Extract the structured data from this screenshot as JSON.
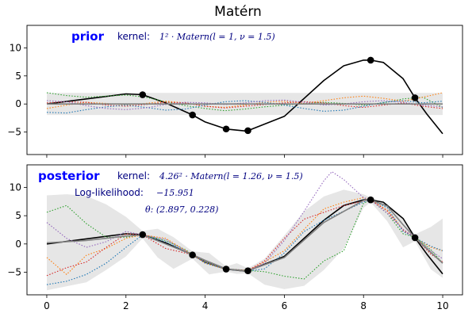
{
  "chart_data": {
    "type": "line",
    "title": "Matérn",
    "xlim": [
      -0.5,
      10.5
    ],
    "xticks": [
      0,
      2,
      4,
      6,
      8,
      10
    ],
    "observations": {
      "x": [
        2.42,
        3.68,
        4.53,
        5.08,
        8.18,
        9.3
      ],
      "y": [
        1.65,
        -1.95,
        -4.45,
        -4.75,
        7.8,
        1.1
      ]
    },
    "panels": [
      {
        "label": "prior",
        "ylim": [
          -9,
          14
        ],
        "yticks": [
          -5,
          0,
          5,
          10
        ],
        "kernel_label": "kernel:",
        "kernel_formula": "1² · Matern(l = 1, ν = 1.5)",
        "band": {
          "x": [
            0,
            10
          ],
          "lower": [
            -1.96,
            -1.96
          ],
          "upper": [
            1.96,
            1.96
          ]
        },
        "mean": {
          "x": [
            0,
            10
          ],
          "y": [
            0,
            0
          ]
        },
        "series": [
          {
            "color": "#000000",
            "style": "solid",
            "x": [
              0,
              1,
              2,
              2.42,
              3,
              3.68,
              4,
              4.53,
              5,
              5.08,
              6,
              7,
              7.5,
              8,
              8.18,
              8.5,
              9,
              9.3,
              9.6,
              10
            ],
            "y": [
              0,
              0.9,
              1.8,
              1.65,
              0.2,
              -1.95,
              -3.2,
              -4.45,
              -4.8,
              -4.75,
              -2.2,
              4.2,
              6.8,
              7.8,
              7.8,
              7.4,
              4.5,
              1.1,
              -1.8,
              -5.3
            ]
          },
          {
            "color": "#2ca02c",
            "style": "dotted",
            "x": [
              0,
              0.5,
              1,
              1.5,
              2,
              2.5,
              3,
              3.5,
              4,
              4.5,
              5,
              5.5,
              6,
              6.5,
              7,
              7.5,
              8,
              8.5,
              9,
              9.5,
              10
            ],
            "y": [
              2.0,
              1.5,
              1.2,
              1.4,
              1.6,
              1.2,
              0.4,
              -0.3,
              -0.8,
              -1.2,
              -0.9,
              -0.5,
              -0.2,
              0.1,
              0.3,
              0.1,
              -0.2,
              0.2,
              0.9,
              1.2,
              -0.6
            ]
          },
          {
            "color": "#ff7f0e",
            "style": "dotted",
            "x": [
              0,
              0.5,
              1,
              1.5,
              2,
              2.5,
              3,
              3.5,
              4,
              4.5,
              5,
              5.5,
              6,
              6.5,
              7,
              7.5,
              8,
              8.5,
              9,
              9.5,
              10
            ],
            "y": [
              -0.8,
              -0.2,
              0.3,
              0.1,
              -0.2,
              0.1,
              0.5,
              0.2,
              -0.4,
              -0.6,
              -0.2,
              0.3,
              0.5,
              0.1,
              0.6,
              1.1,
              1.4,
              1.0,
              0.5,
              1.2,
              2.0
            ]
          },
          {
            "color": "#d62728",
            "style": "dotted",
            "x": [
              0,
              0.5,
              1,
              1.5,
              2,
              2.5,
              3,
              3.5,
              4,
              4.5,
              5,
              5.5,
              6,
              6.5,
              7,
              7.5,
              8,
              8.5,
              9,
              9.5,
              10
            ],
            "y": [
              0.2,
              0.4,
              0.3,
              -0.2,
              -0.4,
              -0.1,
              0.3,
              0.2,
              -0.4,
              -0.7,
              -0.4,
              -0.1,
              0.2,
              0.4,
              0.2,
              -0.3,
              -0.6,
              -0.2,
              0.2,
              -0.4,
              -0.8
            ]
          },
          {
            "color": "#1f77b4",
            "style": "dotted",
            "x": [
              0,
              0.5,
              1,
              1.5,
              2,
              2.5,
              3,
              3.5,
              4,
              4.5,
              5,
              5.5,
              6,
              6.5,
              7,
              7.5,
              8,
              8.5,
              9,
              9.5,
              10
            ],
            "y": [
              -1.5,
              -1.6,
              -1.0,
              -0.5,
              -0.2,
              -0.6,
              -1.1,
              -0.9,
              -0.2,
              0.4,
              0.6,
              0.3,
              -0.2,
              -0.8,
              -1.3,
              -1.1,
              -0.4,
              0.3,
              0.6,
              0.2,
              0.5
            ]
          },
          {
            "color": "#9467bd",
            "style": "dotted",
            "x": [
              0,
              0.5,
              1,
              1.5,
              2,
              2.5,
              3,
              3.5,
              4,
              4.5,
              5,
              5.5,
              6,
              6.5,
              7,
              7.5,
              8,
              8.5,
              9,
              9.5,
              10
            ],
            "y": [
              0.6,
              0.4,
              -0.3,
              -0.8,
              -1.0,
              -0.7,
              -0.1,
              0.3,
              0.2,
              -0.1,
              0.2,
              0.6,
              0.7,
              0.3,
              -0.2,
              0.0,
              0.4,
              0.6,
              0.3,
              -0.2,
              -0.5
            ]
          }
        ]
      },
      {
        "label": "posterior",
        "ylim": [
          -9,
          14
        ],
        "yticks": [
          -5,
          0,
          5,
          10
        ],
        "kernel_label": "kernel:",
        "kernel_formula": "4.26² · Matern(l = 1.26, ν = 1.5)",
        "loglik_label": "Log-likelihood:",
        "loglik_value": "−15.951",
        "theta_formula": "θ: (2.897, 0.228)",
        "band": {
          "x": [
            0,
            0.5,
            1,
            1.5,
            2,
            2.42,
            2.8,
            3.2,
            3.68,
            4.1,
            4.53,
            4.8,
            5.08,
            5.5,
            6,
            6.5,
            7,
            7.5,
            8,
            8.18,
            8.6,
            9,
            9.3,
            9.7,
            10
          ],
          "lower": [
            -8.2,
            -7.5,
            -6.8,
            -4.6,
            -2.2,
            1.0,
            -2.4,
            -4.4,
            -2.6,
            -5.4,
            -4.9,
            -5.3,
            -5.2,
            -7.2,
            -8.0,
            -7.4,
            -4.6,
            -0.8,
            6.4,
            7.4,
            4.0,
            -0.6,
            0.5,
            -4.5,
            -6.0
          ],
          "upper": [
            8.6,
            8.8,
            8.5,
            7.0,
            4.8,
            2.3,
            2.7,
            1.2,
            -1.3,
            -1.6,
            -4.0,
            -3.4,
            -4.3,
            -2.6,
            1.5,
            5.8,
            8.4,
            9.6,
            8.8,
            8.2,
            7.0,
            4.2,
            1.7,
            3.0,
            4.5
          ]
        },
        "mean": {
          "x": [
            0,
            1,
            2,
            2.42,
            3,
            3.68,
            4,
            4.53,
            5,
            5.08,
            6,
            7,
            8,
            8.18,
            8.6,
            9,
            9.3,
            9.7,
            10
          ],
          "y": [
            0.2,
            0.6,
            1.4,
            1.6,
            0.0,
            -1.9,
            -2.9,
            -4.4,
            -4.8,
            -4.75,
            -2.4,
            3.8,
            7.7,
            7.8,
            6.7,
            3.4,
            1.1,
            -1.5,
            -3.4
          ]
        },
        "series": [
          {
            "color": "#000000",
            "style": "solid",
            "x": [
              0,
              1,
              2,
              2.42,
              3,
              3.68,
              4,
              4.53,
              5,
              5.08,
              6,
              7,
              7.5,
              8,
              8.18,
              8.5,
              9,
              9.3,
              9.6,
              10
            ],
            "y": [
              0,
              0.9,
              1.8,
              1.65,
              0.2,
              -1.95,
              -3.2,
              -4.45,
              -4.8,
              -4.75,
              -2.2,
              4.2,
              6.8,
              7.8,
              7.8,
              7.4,
              4.5,
              1.1,
              -1.8,
              -5.3
            ]
          },
          {
            "color": "#2ca02c",
            "style": "dotted",
            "x": [
              0,
              0.5,
              1,
              1.5,
              2,
              2.42,
              3,
              3.5,
              3.68,
              4,
              4.53,
              5.08,
              5.5,
              6,
              6.5,
              7,
              7.5,
              8,
              8.18,
              8.6,
              9,
              9.3,
              9.7,
              10
            ],
            "y": [
              5.6,
              6.8,
              3.6,
              1.2,
              1.2,
              1.6,
              0.6,
              -1.0,
              -1.9,
              -3.2,
              -4.4,
              -4.7,
              -4.9,
              -5.7,
              -6.2,
              -3.0,
              -1.2,
              7.2,
              7.8,
              5.4,
              1.8,
              1.2,
              -1.0,
              -3.4
            ]
          },
          {
            "color": "#ff7f0e",
            "style": "dotted",
            "x": [
              0,
              0.5,
              1,
              1.5,
              2,
              2.42,
              3,
              3.68,
              4,
              4.53,
              5.08,
              5.5,
              6,
              6.5,
              7,
              7.5,
              8,
              8.18,
              8.6,
              9,
              9.3,
              9.7,
              10
            ],
            "y": [
              -2.4,
              -5.4,
              -2.0,
              -0.8,
              1.0,
              1.6,
              1.0,
              -1.9,
              -3.4,
              -4.5,
              -4.7,
              -3.2,
              -1.2,
              2.6,
              6.2,
              7.4,
              8.2,
              7.8,
              6.0,
              2.6,
              1.1,
              -0.6,
              -1.2
            ]
          },
          {
            "color": "#d62728",
            "style": "dotted",
            "x": [
              0,
              0.5,
              1,
              1.5,
              2,
              2.42,
              3,
              3.68,
              4,
              4.53,
              5.08,
              5.5,
              6,
              6.5,
              7,
              7.5,
              8,
              8.18,
              8.6,
              9,
              9.3,
              9.7,
              10
            ],
            "y": [
              -5.6,
              -4.2,
              -3.2,
              -0.6,
              1.8,
              1.6,
              -0.8,
              -1.9,
              -3.2,
              -4.4,
              -4.7,
              -3.0,
              1.0,
              4.4,
              5.6,
              6.8,
              7.6,
              7.8,
              5.8,
              2.4,
              1.1,
              -1.8,
              -3.2
            ]
          },
          {
            "color": "#1f77b4",
            "style": "dotted",
            "x": [
              0,
              0.5,
              1,
              1.5,
              2,
              2.42,
              3,
              3.68,
              4,
              4.53,
              5.08,
              5.5,
              6,
              6.5,
              7,
              7.5,
              8,
              8.18,
              8.6,
              9,
              9.3,
              9.7,
              10
            ],
            "y": [
              -7.2,
              -6.6,
              -5.4,
              -3.4,
              -0.6,
              1.6,
              0.4,
              -1.9,
              -3.4,
              -4.5,
              -4.8,
              -4.4,
              -1.6,
              2.2,
              4.2,
              5.8,
              7.4,
              7.8,
              6.4,
              2.2,
              1.1,
              -0.4,
              -1.2
            ]
          },
          {
            "color": "#9467bd",
            "style": "dotted",
            "x": [
              0,
              0.5,
              1,
              1.5,
              2,
              2.42,
              3,
              3.68,
              4,
              4.53,
              5.08,
              5.5,
              6,
              6.5,
              7,
              7.2,
              7.5,
              8,
              8.18,
              8.6,
              9,
              9.3,
              9.7,
              10
            ],
            "y": [
              3.8,
              1.0,
              -0.6,
              0.4,
              2.2,
              1.6,
              0.8,
              -1.9,
              -3.2,
              -4.4,
              -4.7,
              -3.4,
              0.6,
              5.8,
              11.2,
              12.8,
              11.4,
              8.2,
              7.8,
              5.4,
              2.6,
              1.1,
              -1.2,
              -2.6
            ]
          }
        ]
      }
    ]
  }
}
